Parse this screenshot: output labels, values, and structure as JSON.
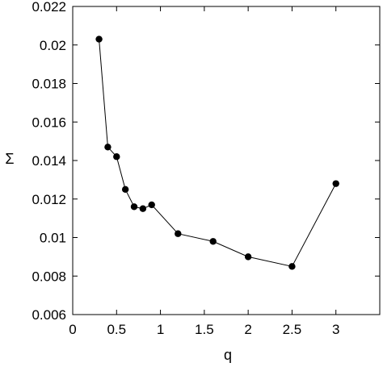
{
  "chart_data": {
    "type": "line",
    "title": "",
    "xlabel": "q",
    "ylabel": "Σ",
    "xlim": [
      0,
      3.5
    ],
    "ylim": [
      0.006,
      0.022
    ],
    "x_ticks": [
      0,
      0.5,
      1,
      1.5,
      2,
      2.5,
      3
    ],
    "x_tick_labels": [
      "0",
      "0.5",
      "1",
      "1.5",
      "2",
      "2.5",
      "3"
    ],
    "y_ticks": [
      0.006,
      0.008,
      0.01,
      0.012,
      0.014,
      0.016,
      0.018,
      0.02,
      0.022
    ],
    "y_tick_labels": [
      "0.006",
      "0.008",
      "0.01",
      "0.012",
      "0.014",
      "0.016",
      "0.018",
      "0.02",
      "0.022"
    ],
    "grid": false,
    "legend": "none",
    "series": [
      {
        "x": [
          0.3,
          0.4,
          0.5,
          0.6,
          0.7,
          0.8,
          0.9,
          1.2,
          1.6,
          2.0,
          2.5,
          3.0
        ],
        "y": [
          0.0203,
          0.0147,
          0.0142,
          0.0125,
          0.0116,
          0.0115,
          0.0117,
          0.0102,
          0.0098,
          0.009,
          0.0085,
          0.0128
        ],
        "color": "#000000",
        "marker": "filled-circle"
      }
    ]
  }
}
